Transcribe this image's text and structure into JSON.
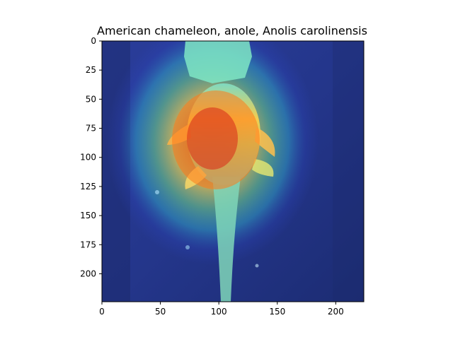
{
  "chart_data": {
    "type": "heatmap",
    "title": "American chameleon, anole, Anolis carolinensis",
    "xlabel": "",
    "ylabel": "",
    "xlim": [
      0,
      224
    ],
    "ylim": [
      224,
      0
    ],
    "xticks": [
      0,
      50,
      100,
      150,
      200
    ],
    "yticks": [
      0,
      25,
      50,
      75,
      100,
      125,
      150,
      175,
      200
    ],
    "grid": false,
    "legend": "none",
    "image_content": "photo of an anole lizard viewed from above, overlaid with a jet-colormap saliency heatmap",
    "heatmap_peak": {
      "x": 100,
      "y": 85
    },
    "colormap": "jet"
  },
  "colors": {
    "background_dark": "#1f2f7a",
    "blue": "#2e49c9",
    "cyan": "#35c3d6",
    "green": "#74e08a",
    "yellow": "#ffe84d",
    "orange": "#ff8a1a",
    "red": "#e23b1f",
    "axis": "#000000"
  }
}
